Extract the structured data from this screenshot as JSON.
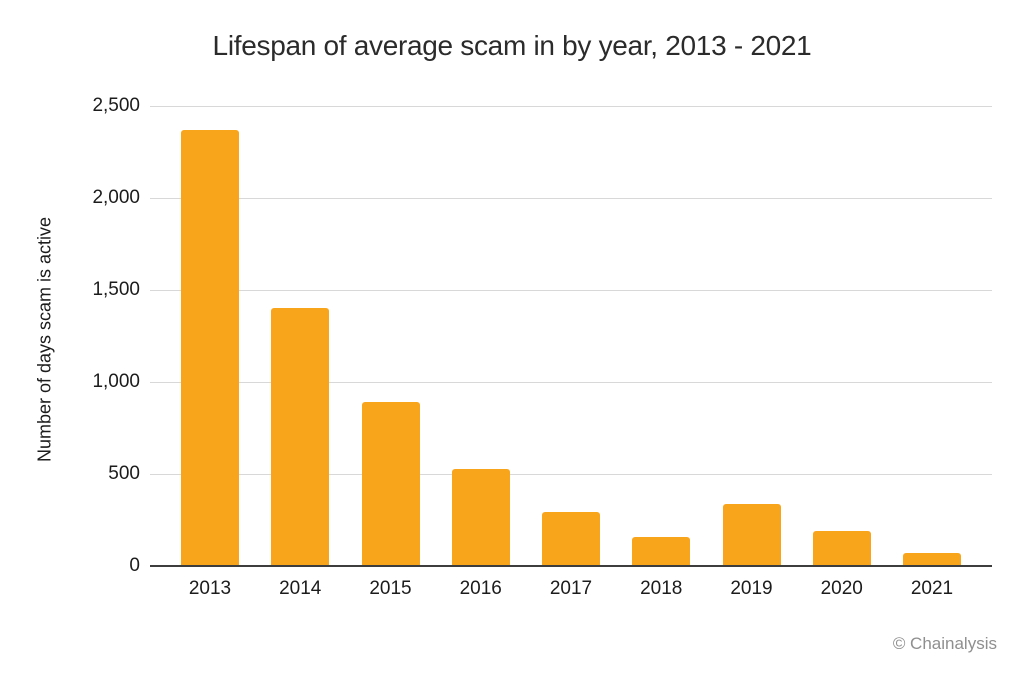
{
  "header": {
    "title": "Lifespan of average scam in by year, 2013 - 2021"
  },
  "footer": {
    "credit": "© Chainalysis"
  },
  "colors": {
    "background": "#FFFFFF",
    "bar": "#F9A51B",
    "gridline": "#D8D8D8",
    "axis_line": "#3D3D3D",
    "title_text": "#2B2B2B",
    "tick_text": "#1C1C1C",
    "credit_text": "#8F8F8F"
  },
  "chart_data": {
    "type": "bar",
    "title": "Lifespan of average scam in by year, 2013 - 2021",
    "xlabel": "",
    "ylabel": "Number of days scam is active",
    "categories": [
      "2013",
      "2014",
      "2015",
      "2016",
      "2017",
      "2018",
      "2019",
      "2020",
      "2021"
    ],
    "values": [
      2369,
      1404,
      890,
      527,
      296,
      157,
      335,
      192,
      70
    ],
    "ylim": [
      0,
      2500
    ],
    "yticks": [
      0,
      500,
      1000,
      1500,
      2000,
      2500
    ],
    "ytick_labels": [
      "0",
      "500",
      "1,000",
      "1,500",
      "2,000",
      "2,500"
    ],
    "grid": "horizontal",
    "legend": "none",
    "bar_color": "#F9A51B"
  }
}
